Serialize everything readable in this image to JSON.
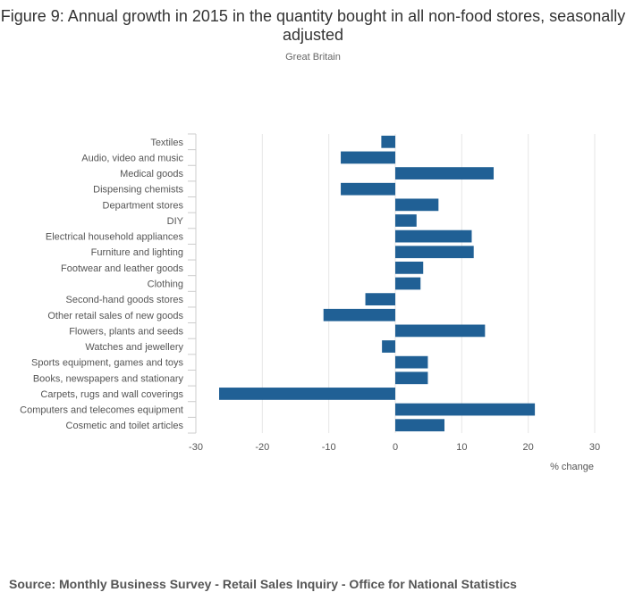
{
  "chart_data": {
    "type": "bar",
    "orientation": "horizontal",
    "title": "Figure 9: Annual growth in 2015 in the quantity bought in all non-food stores, seasonally adjusted",
    "subtitle": "Great Britain",
    "xlabel": "% change",
    "ylabel": "",
    "xlim": [
      -30,
      30
    ],
    "xticks": [
      -30,
      -20,
      -10,
      0,
      10,
      20,
      30
    ],
    "grid": true,
    "bar_color": "#206095",
    "categories": [
      "Textiles",
      "Audio, video and music",
      "Medical goods",
      "Dispensing chemists",
      "Department stores",
      "DIY",
      "Electrical household appliances",
      "Furniture and lighting",
      "Footwear and leather goods",
      "Clothing",
      "Second-hand goods stores",
      "Other retail sales of new goods",
      "Flowers, plants and seeds",
      "Watches and jewellery",
      "Sports equipment, games and toys",
      "Books, newspapers and stationary",
      "Carpets, rugs and wall coverings",
      "Computers and telecomes equipment",
      "Cosmetic and toilet articles"
    ],
    "values": [
      -2.1,
      -8.2,
      14.8,
      -8.2,
      6.5,
      3.2,
      11.5,
      11.8,
      4.2,
      3.8,
      -4.5,
      -10.8,
      13.5,
      -2.0,
      4.9,
      4.9,
      -26.5,
      21.0,
      7.4
    ]
  },
  "source": "Source: Monthly Business Survey - Retail Sales Inquiry - Office for National Statistics"
}
